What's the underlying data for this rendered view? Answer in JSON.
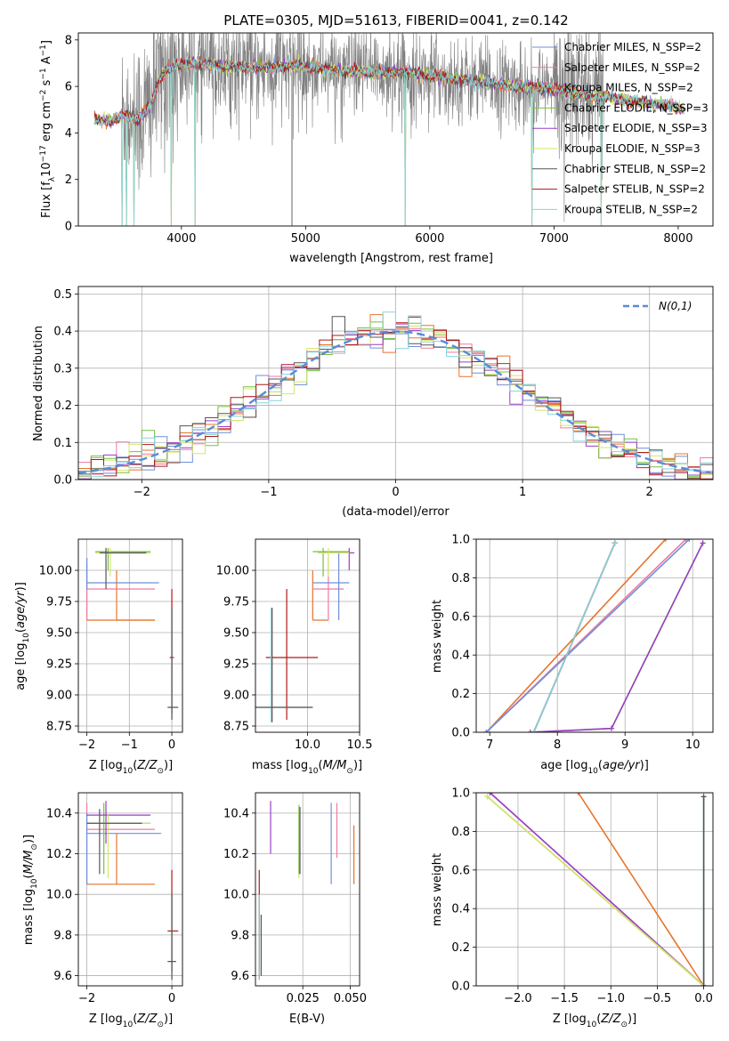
{
  "title": "PLATE=0305, MJD=51613, FIBERID=0041, z=0.142",
  "colors": {
    "chabrier_miles": "#6f8fd8",
    "salpeter_miles": "#f07aa0",
    "kroupa_miles": "#e8742a",
    "chabrier_elodie": "#77c043",
    "salpeter_elodie": "#9a3fc7",
    "kroupa_elodie": "#d4e56a",
    "chabrier_stelib": "#555555",
    "salpeter_stelib": "#b01818",
    "kroupa_stelib": "#86d4dc",
    "data": "#808080",
    "normal": "#5a8ad8"
  },
  "chart_data": [
    {
      "type": "line",
      "panel": "spectrum",
      "xlabel": "wavelength [Angstrom, rest frame]",
      "ylabel": "Flux [f_λ 10^-17 erg cm^-2 s^-1 A^-1]",
      "xlim": [
        3170,
        8280
      ],
      "ylim": [
        0,
        8.3
      ],
      "xticks": [
        4000,
        5000,
        6000,
        7000,
        8000
      ],
      "yticks": [
        0,
        2,
        4,
        6,
        8
      ],
      "legend": "upper right",
      "legend_entries": [
        "Chabrier MILES, N_SSP=2",
        "Salpeter MILES, N_SSP=2",
        "Kroupa MILES, N_SSP=2",
        "Chabrier ELODIE, N_SSP=3",
        "Salpeter ELODIE, N_SSP=3",
        "Kroupa ELODIE, N_SSP=3",
        "Chabrier STELIB, N_SSP=2",
        "Salpeter STELIB, N_SSP=2",
        "Kroupa STELIB, N_SSP=2"
      ],
      "model_continuum": {
        "x": [
          3300,
          3420,
          3550,
          3650,
          3750,
          3850,
          3950,
          4100,
          4300,
          4600,
          4900,
          5200,
          5500,
          5800,
          6100,
          6400,
          6700,
          7000,
          7300,
          7600,
          7900,
          8050
        ],
        "y": [
          4.6,
          4.5,
          4.8,
          4.6,
          5.2,
          6.6,
          6.9,
          7.0,
          6.9,
          6.8,
          6.9,
          6.7,
          6.6,
          6.6,
          6.4,
          6.2,
          6.0,
          5.9,
          5.6,
          5.4,
          5.2,
          5.0
        ]
      },
      "model_dips": [
        3520,
        3560,
        3620,
        3920,
        4110,
        5800,
        6820,
        7380
      ]
    },
    {
      "type": "step",
      "panel": "residuals",
      "xlabel": "(data-model)/error",
      "ylabel": "Normed distribution",
      "xlim": [
        -2.5,
        2.5
      ],
      "ylim": [
        0,
        0.52
      ],
      "xticks": [
        -2,
        -1,
        0,
        1,
        2
      ],
      "yticks": [
        0.0,
        0.1,
        0.2,
        0.3,
        0.4,
        0.5
      ],
      "bin_width": 0.1,
      "legend_entries": [
        "N(0,1)"
      ],
      "legend": "upper right",
      "grid": true
    },
    {
      "type": "errorbar",
      "panel": "age_vs_Z",
      "xlabel": "Z [log10(Z/Z_sun)]",
      "ylabel": "age [log10(age/yr)]",
      "xlim": [
        -2.2,
        0.25
      ],
      "ylim": [
        8.7,
        10.25
      ],
      "xticks": [
        -2,
        -1,
        0
      ],
      "yticks": [
        8.75,
        9.0,
        9.25,
        9.5,
        9.75,
        10.0
      ],
      "ytick_labels": [
        "8.75",
        "9.00",
        "9.25",
        "9.50",
        "9.75",
        "10.00"
      ],
      "grid": true
    },
    {
      "type": "errorbar",
      "panel": "age_vs_mass",
      "xlabel": "mass [log10(M/M_sun)]",
      "xlim": [
        9.5,
        10.5
      ],
      "ylim": [
        8.7,
        10.25
      ],
      "xticks": [
        10.0,
        10.5
      ],
      "xtick_labels": [
        "10.0",
        "10.5"
      ],
      "yticks": [
        8.75,
        9.0,
        9.25,
        9.5,
        9.75,
        10.0
      ],
      "ytick_labels": [
        "8.75",
        "9.00",
        "9.25",
        "9.50",
        "9.75",
        "10.00"
      ],
      "grid": true
    },
    {
      "type": "line",
      "panel": "mass_weight_vs_age",
      "xlabel": "age  [log10(age/yr)]",
      "ylabel": "mass weight",
      "xlim": [
        6.8,
        10.3
      ],
      "ylim": [
        0,
        1.0
      ],
      "xticks": [
        7,
        8,
        9,
        10
      ],
      "yticks": [
        0.0,
        0.2,
        0.4,
        0.6,
        0.8,
        1.0
      ],
      "ytick_labels": [
        "0.0",
        "0.2",
        "0.4",
        "0.6",
        "0.8",
        "1.0"
      ],
      "grid": true,
      "series": [
        {
          "key": "kroupa_miles",
          "x": [
            6.95,
            9.6
          ],
          "y": [
            0.0,
            1.0
          ]
        },
        {
          "key": "salpeter_miles",
          "x": [
            6.95,
            9.9
          ],
          "y": [
            0.0,
            1.0
          ]
        },
        {
          "key": "chabrier_miles",
          "x": [
            6.95,
            9.95
          ],
          "y": [
            0.0,
            1.0
          ]
        },
        {
          "key": "chabrier_elodie",
          "x": [
            7.6,
            8.8,
            10.15
          ],
          "y": [
            0.0,
            0.02,
            0.98
          ]
        },
        {
          "key": "kroupa_elodie",
          "x": [
            7.6,
            8.8,
            10.15
          ],
          "y": [
            0.0,
            0.02,
            0.98
          ]
        },
        {
          "key": "salpeter_elodie",
          "x": [
            7.6,
            8.8,
            10.15
          ],
          "y": [
            0.0,
            0.02,
            0.98
          ]
        },
        {
          "key": "chabrier_stelib",
          "x": [
            7.65,
            8.85
          ],
          "y": [
            0.0,
            0.98
          ]
        },
        {
          "key": "salpeter_stelib",
          "x": [
            7.65,
            8.85
          ],
          "y": [
            0.0,
            0.98
          ]
        },
        {
          "key": "kroupa_stelib",
          "x": [
            7.65,
            8.85
          ],
          "y": [
            0.0,
            0.98
          ]
        }
      ]
    },
    {
      "type": "errorbar",
      "panel": "mass_vs_Z",
      "xlabel": "Z [log10(Z/Z_sun)]",
      "ylabel": "mass [log10(M/M_sun)]",
      "xlim": [
        -2.2,
        0.25
      ],
      "ylim": [
        9.55,
        10.5
      ],
      "xticks": [
        -2,
        0
      ],
      "yticks": [
        9.6,
        9.8,
        10.0,
        10.2,
        10.4
      ],
      "ytick_labels": [
        "9.6",
        "9.8",
        "10.0",
        "10.2",
        "10.4"
      ],
      "grid": true
    },
    {
      "type": "errorbar",
      "panel": "mass_vs_ebv",
      "xlabel": "E(B-V)",
      "xlim": [
        0.0,
        0.055
      ],
      "ylim": [
        9.55,
        10.5
      ],
      "xticks": [
        0.025,
        0.05
      ],
      "xtick_labels": [
        "0.025",
        "0.050"
      ],
      "yticks": [
        9.6,
        9.8,
        10.0,
        10.2,
        10.4
      ],
      "ytick_labels": [
        "9.6",
        "9.8",
        "10.0",
        "10.2",
        "10.4"
      ],
      "grid": true
    },
    {
      "type": "line",
      "panel": "mass_weight_vs_Z",
      "xlabel": "Z [log10(Z/Z_sun)]",
      "ylabel": "mass weight",
      "xlim": [
        -2.45,
        0.1
      ],
      "ylim": [
        0,
        1.0
      ],
      "xticks": [
        -2.0,
        -1.5,
        -1.0,
        -0.5,
        0.0
      ],
      "xtick_labels": [
        "−2.0",
        "−1.5",
        "−1.0",
        "−0.5",
        "0.0"
      ],
      "yticks": [
        0.0,
        0.2,
        0.4,
        0.6,
        0.8,
        1.0
      ],
      "ytick_labels": [
        "0.0",
        "0.2",
        "0.4",
        "0.6",
        "0.8",
        "1.0"
      ],
      "grid": true,
      "series": [
        {
          "key": "kroupa_miles",
          "x": [
            -1.35,
            0.0
          ],
          "y": [
            1.0,
            0.0
          ]
        },
        {
          "key": "salpeter_miles",
          "x": [
            -2.3,
            0.0
          ],
          "y": [
            1.0,
            0.0
          ]
        },
        {
          "key": "salpeter_elodie",
          "x": [
            -2.3,
            0.0
          ],
          "y": [
            1.0,
            0.0
          ]
        },
        {
          "key": "chabrier_elodie",
          "x": [
            -2.33,
            0.0
          ],
          "y": [
            0.98,
            0.0
          ]
        },
        {
          "key": "kroupa_elodie",
          "x": [
            -2.33,
            0.0
          ],
          "y": [
            0.98,
            0.0
          ]
        },
        {
          "key": "kroupa_stelib",
          "x": [
            0.0,
            0.0
          ],
          "y": [
            0.0,
            0.98
          ]
        },
        {
          "key": "chabrier_stelib",
          "x": [
            0.0,
            0.0
          ],
          "y": [
            0.0,
            0.98
          ]
        }
      ]
    }
  ]
}
